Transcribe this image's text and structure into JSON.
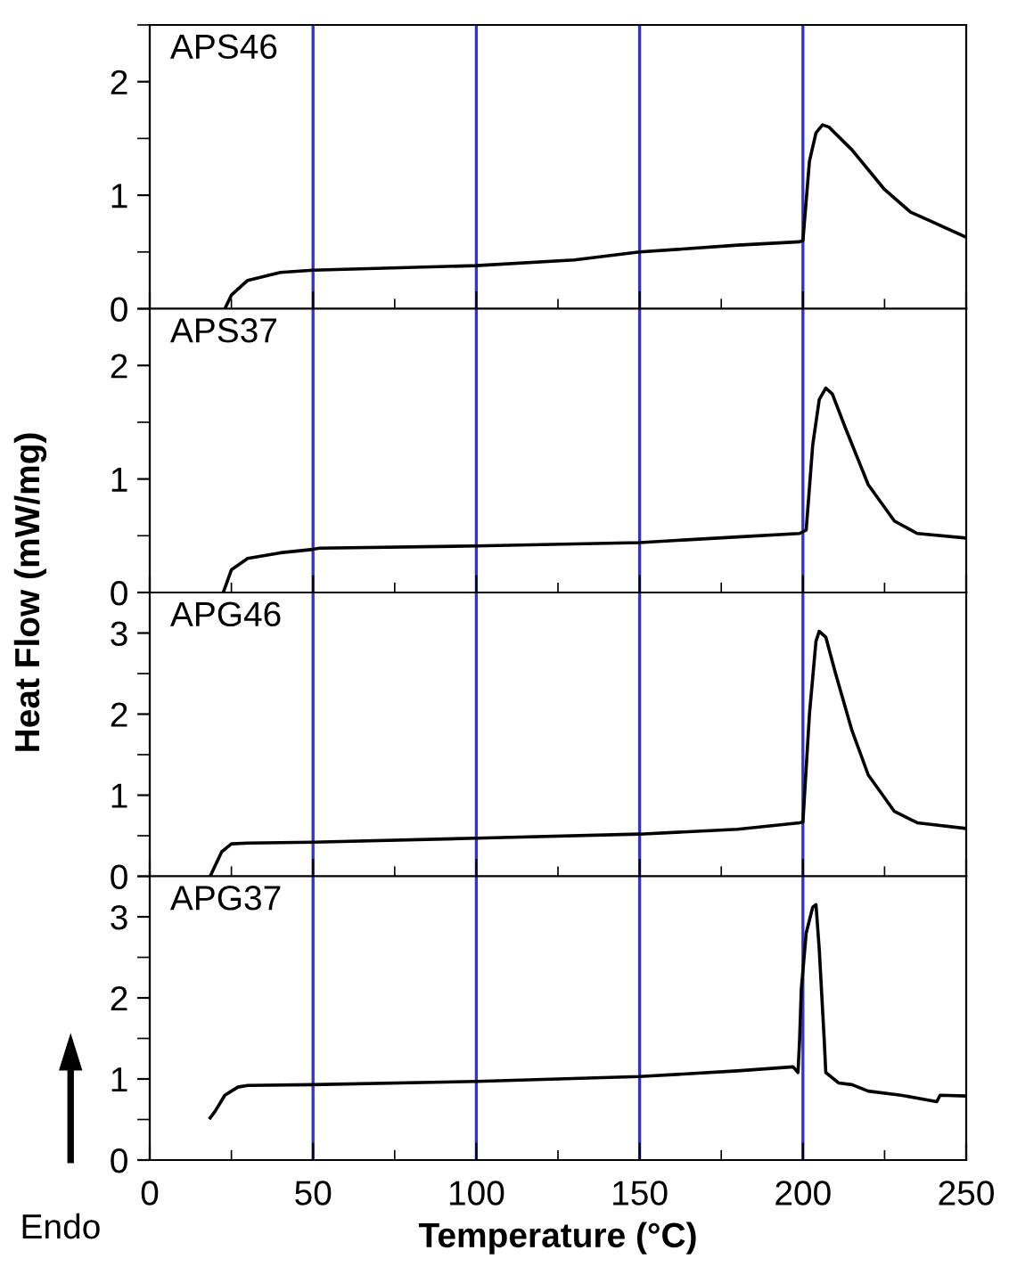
{
  "chart_data": [
    {
      "type": "line",
      "title": "APS46",
      "ylabel": "Heat Flow (mW/mg)",
      "xlim": [
        0,
        250
      ],
      "xticks": [
        0,
        50,
        100,
        150,
        200,
        250
      ],
      "ylim": [
        0,
        2.5
      ],
      "yticks": [
        0,
        1,
        2
      ],
      "tick_labels": "y",
      "ref_lines": [
        {
          "axis": "x",
          "value": 50,
          "color": "#3333cc"
        },
        {
          "axis": "x",
          "value": 100,
          "color": "#3333cc"
        },
        {
          "axis": "x",
          "value": 150,
          "color": "#3333cc"
        },
        {
          "axis": "x",
          "value": 200,
          "color": "#3333cc"
        }
      ],
      "series": [
        {
          "color": "#000000",
          "x": [
            23,
            25,
            30,
            40,
            50,
            100,
            130,
            150,
            180,
            199,
            200,
            202,
            204,
            206,
            208,
            215,
            225,
            233,
            240,
            250
          ],
          "values": [
            0,
            0.12,
            0.25,
            0.32,
            0.34,
            0.38,
            0.43,
            0.5,
            0.56,
            0.59,
            0.6,
            1.3,
            1.55,
            1.62,
            1.6,
            1.4,
            1.05,
            0.85,
            0.76,
            0.63
          ]
        }
      ]
    },
    {
      "type": "line",
      "title": "APS37",
      "xlim": [
        0,
        250
      ],
      "xticks": [
        0,
        50,
        100,
        150,
        200,
        250
      ],
      "ylim": [
        0,
        2.5
      ],
      "yticks": [
        0,
        1,
        2
      ],
      "tick_labels": "y",
      "ref_lines": [
        {
          "axis": "x",
          "value": 50,
          "color": "#3333cc"
        },
        {
          "axis": "x",
          "value": 100,
          "color": "#3333cc"
        },
        {
          "axis": "x",
          "value": 150,
          "color": "#3333cc"
        },
        {
          "axis": "x",
          "value": 200,
          "color": "#3333cc"
        }
      ],
      "series": [
        {
          "color": "#000000",
          "x": [
            22.5,
            25,
            30,
            40,
            50,
            52,
            100,
            150,
            180,
            199,
            201,
            203,
            205,
            207,
            209,
            213,
            220,
            228,
            235,
            250
          ],
          "values": [
            0,
            0.2,
            0.3,
            0.35,
            0.38,
            0.39,
            0.41,
            0.44,
            0.49,
            0.52,
            0.55,
            1.3,
            1.7,
            1.8,
            1.75,
            1.45,
            0.95,
            0.63,
            0.52,
            0.48
          ]
        }
      ]
    },
    {
      "type": "line",
      "title": "APG46",
      "xlim": [
        0,
        250
      ],
      "xticks": [
        0,
        50,
        100,
        150,
        200,
        250
      ],
      "ylim": [
        0,
        3.5
      ],
      "yticks": [
        0,
        1,
        2,
        3
      ],
      "tick_labels": "y",
      "ref_lines": [
        {
          "axis": "x",
          "value": 50,
          "color": "#3333cc"
        },
        {
          "axis": "x",
          "value": 100,
          "color": "#3333cc"
        },
        {
          "axis": "x",
          "value": 150,
          "color": "#3333cc"
        },
        {
          "axis": "x",
          "value": 200,
          "color": "#3333cc"
        }
      ],
      "series": [
        {
          "color": "#000000",
          "x": [
            18.5,
            22,
            25,
            30,
            50,
            100,
            150,
            180,
            199,
            200,
            202,
            204,
            205,
            207,
            210,
            215,
            220,
            228,
            235,
            250
          ],
          "values": [
            0,
            0.3,
            0.4,
            0.41,
            0.42,
            0.47,
            0.52,
            0.58,
            0.66,
            0.67,
            2.0,
            2.9,
            3.02,
            2.95,
            2.5,
            1.8,
            1.25,
            0.8,
            0.66,
            0.59
          ]
        }
      ]
    },
    {
      "type": "line",
      "title": "APG37",
      "xlabel": "Temperature (°C)",
      "annotations": [
        "Endo"
      ],
      "xlim": [
        0,
        250
      ],
      "xticks": [
        0,
        50,
        100,
        150,
        200,
        250
      ],
      "ylim": [
        0,
        3.5
      ],
      "yticks": [
        0,
        1,
        2,
        3
      ],
      "ref_lines": [
        {
          "axis": "x",
          "value": 50,
          "color": "#3333cc"
        },
        {
          "axis": "x",
          "value": 100,
          "color": "#3333cc"
        },
        {
          "axis": "x",
          "value": 150,
          "color": "#3333cc"
        },
        {
          "axis": "x",
          "value": 200,
          "color": "#3333cc"
        }
      ],
      "series": [
        {
          "color": "#000000",
          "x": [
            18.5,
            20,
            23,
            27,
            30,
            50,
            100,
            150,
            180,
            197,
            198.5,
            199,
            199.5,
            201,
            203,
            204,
            205,
            206.5,
            207,
            211,
            215,
            220,
            230,
            241,
            242,
            250
          ],
          "values": [
            0.52,
            0.6,
            0.8,
            0.9,
            0.92,
            0.93,
            0.97,
            1.03,
            1.1,
            1.15,
            1.08,
            1.5,
            2.1,
            2.8,
            3.12,
            3.15,
            2.6,
            1.5,
            1.08,
            0.95,
            0.93,
            0.85,
            0.8,
            0.72,
            0.8,
            0.79
          ]
        }
      ]
    }
  ]
}
